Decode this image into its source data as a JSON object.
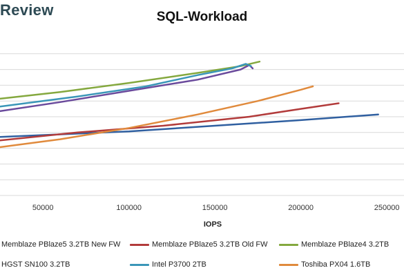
{
  "brand": {
    "text": "Review"
  },
  "chart_data": {
    "type": "line",
    "title": "SQL-Workload",
    "xlabel": "IOPS",
    "ylabel": "",
    "xlim": [
      25000,
      260000
    ],
    "ylim": [
      0,
      14
    ],
    "xticks": [
      50000,
      100000,
      150000,
      200000,
      250000
    ],
    "xtick_labels": [
      "50000",
      "100000",
      "150000",
      "200000",
      "250000"
    ],
    "grid": "horizontal",
    "legend_position": "bottom",
    "series": [
      {
        "name": "Memblaze PBlaze5 3.2TB New FW",
        "color": "#2f5fa0",
        "points": [
          [
            25000,
            5.2
          ],
          [
            100000,
            5.7
          ],
          [
            150000,
            6.2
          ],
          [
            200000,
            6.7
          ],
          [
            245000,
            7.2
          ]
        ]
      },
      {
        "name": "Memblaze PBlaze5 3.2TB Old FW",
        "color": "#b23b3b",
        "points": [
          [
            25000,
            4.9
          ],
          [
            70000,
            5.6
          ],
          [
            120000,
            6.2
          ],
          [
            170000,
            7.0
          ],
          [
            200000,
            7.7
          ],
          [
            222000,
            8.2
          ]
        ]
      },
      {
        "name": "Memblaze PBlaze4 3.2TB",
        "color": "#84a83e",
        "points": [
          [
            25000,
            8.6
          ],
          [
            60000,
            9.2
          ],
          [
            100000,
            10.0
          ],
          [
            140000,
            10.9
          ],
          [
            165000,
            11.5
          ],
          [
            176000,
            11.9
          ]
        ]
      },
      {
        "name": "HGST SN100 3.2TB",
        "color": "#6a4a9c",
        "points": [
          [
            25000,
            7.5
          ],
          [
            60000,
            8.3
          ],
          [
            100000,
            9.3
          ],
          [
            140000,
            10.3
          ],
          [
            165000,
            11.2
          ],
          [
            170000,
            11.6
          ],
          [
            172000,
            11.3
          ]
        ]
      },
      {
        "name": "Intel P3700 2TB",
        "color": "#3a96b8",
        "points": [
          [
            25000,
            7.9
          ],
          [
            70000,
            8.8
          ],
          [
            110000,
            9.7
          ],
          [
            140000,
            10.7
          ],
          [
            160000,
            11.3
          ],
          [
            168000,
            11.7
          ],
          [
            171000,
            11.5
          ]
        ]
      },
      {
        "name": "Toshiba PX04 1.6TB",
        "color": "#e08a3c",
        "points": [
          [
            25000,
            4.3
          ],
          [
            60000,
            5.0
          ],
          [
            100000,
            6.0
          ],
          [
            140000,
            7.2
          ],
          [
            175000,
            8.4
          ],
          [
            200000,
            9.4
          ],
          [
            207000,
            9.7
          ]
        ]
      }
    ]
  }
}
